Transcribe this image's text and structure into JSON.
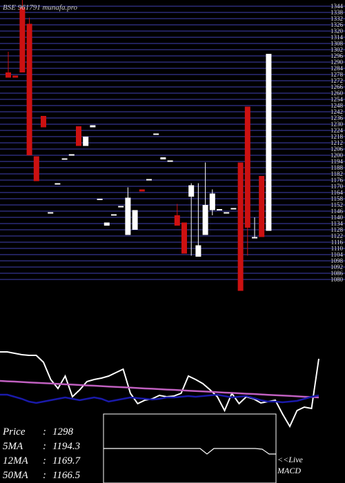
{
  "chart_data": {
    "type": "candlestick",
    "title": "BSE 961791 munafa.pro",
    "ylim": [
      1070,
      1350
    ],
    "yticks": [
      1080,
      1086,
      1092,
      1098,
      1104,
      1110,
      1116,
      1122,
      1128,
      1134,
      1140,
      1146,
      1152,
      1158,
      1164,
      1170,
      1176,
      1182,
      1188,
      1194,
      1200,
      1206,
      1212,
      1218,
      1224,
      1230,
      1236,
      1242,
      1248,
      1254,
      1260,
      1266,
      1272,
      1278,
      1284,
      1290,
      1296,
      1302,
      1308,
      1314,
      1320,
      1326,
      1332,
      1338,
      1344
    ],
    "grid": true,
    "up_color": "#ffffff",
    "down_color": "#cc1111",
    "candles": {
      "open": [
        1280,
        1277,
        1343,
        1327,
        1199,
        1238,
        1145,
        1173,
        1197,
        1201,
        1228,
        1209,
        1227,
        1158,
        1132,
        1143,
        1151,
        1123,
        1128,
        1167,
        1177,
        1221,
        1196,
        1195,
        1142,
        1135,
        1160,
        1102,
        1123,
        1147,
        1148,
        1145,
        1149,
        1193,
        1247,
        1121,
        1180,
        1127
      ],
      "high": [
        1300,
        1277,
        1350,
        1333,
        1199,
        1238,
        1145,
        1173,
        1197,
        1201,
        1228,
        1218,
        1229,
        1158,
        1135,
        1143,
        1151,
        1169,
        1147,
        1167,
        1177,
        1221,
        1198,
        1195,
        1153,
        1135,
        1173,
        1173,
        1193,
        1167,
        1148,
        1145,
        1149,
        1193,
        1247,
        1140,
        1180,
        1298
      ],
      "low": [
        1275,
        1275,
        1280,
        1200,
        1175,
        1227,
        1145,
        1173,
        1197,
        1201,
        1209,
        1209,
        1227,
        1158,
        1132,
        1143,
        1151,
        1123,
        1128,
        1165,
        1177,
        1221,
        1196,
        1195,
        1132,
        1105,
        1103,
        1102,
        1123,
        1142,
        1148,
        1145,
        1149,
        1069,
        1103,
        1121,
        1121,
        1127
      ],
      "close": [
        1275,
        1275,
        1280,
        1200,
        1175,
        1227,
        1145,
        1173,
        1197,
        1201,
        1209,
        1218,
        1229,
        1158,
        1135,
        1143,
        1151,
        1159,
        1147,
        1165,
        1177,
        1221,
        1198,
        1195,
        1132,
        1105,
        1171,
        1113,
        1152,
        1163,
        1148,
        1145,
        1149,
        1069,
        1130,
        1121,
        1121,
        1298
      ]
    },
    "indicator": {
      "ylim": [
        0,
        100
      ],
      "series": [
        {
          "name": "Price",
          "color": "#ffffff",
          "values": [
            60,
            60,
            59,
            58,
            57.5,
            57.5,
            52.5,
            40,
            33.5,
            42.5,
            27.5,
            32.5,
            38.5,
            40,
            41,
            42.5,
            45,
            47.5,
            30,
            22.5,
            25,
            26,
            28.5,
            27.5,
            28,
            30,
            42.5,
            40,
            37,
            32.5,
            27.5,
            17.5,
            30,
            22.5,
            27.5,
            26,
            23,
            24,
            25,
            15,
            6,
            17.5,
            20,
            19,
            55
          ]
        },
        {
          "name": "50MA",
          "color": "#c060c0",
          "values": [
            39,
            38.7,
            38.5,
            38.2,
            37.9,
            37.6,
            37.4,
            37.1,
            36.8,
            36.5,
            36.3,
            36,
            35.7,
            35.5,
            35.2,
            34.9,
            34.6,
            34.4,
            34.1,
            33.8,
            33.5,
            33.3,
            33,
            32.7,
            32.5,
            32.2,
            31.9,
            31.6,
            31.4,
            31.1,
            30.8,
            30.5,
            30.3,
            30,
            29.7,
            29.5,
            29.2,
            28.9,
            28.6,
            28.4,
            28.1,
            27.8,
            27.5,
            27.3,
            27
          ]
        },
        {
          "name": "12MA",
          "color": "#1a1aaa",
          "values": [
            29,
            29,
            27.5,
            26,
            24,
            23,
            24,
            25,
            26,
            27,
            26,
            25,
            26,
            27,
            26,
            24,
            25,
            26,
            27,
            26.5,
            26,
            25.5,
            26,
            27,
            27,
            27.5,
            28,
            27.5,
            28,
            28.5,
            29,
            28,
            27,
            27.5,
            28,
            26.5,
            25,
            24,
            24,
            23.5,
            24,
            24.5,
            26,
            27.5,
            28.5
          ]
        }
      ]
    },
    "macd": {
      "ylim": [
        -50,
        50
      ],
      "values": [
        0,
        0,
        0,
        0,
        0,
        0,
        0,
        0,
        0,
        0,
        0,
        0,
        0,
        0,
        0,
        -8,
        0,
        0,
        0,
        0,
        0,
        0,
        0,
        -1,
        -8,
        -8
      ]
    },
    "separator": ":",
    "stats": [
      {
        "name": "Price",
        "value": 1298
      },
      {
        "name": "5MA",
        "value": 1194.3
      },
      {
        "name": "12MA",
        "value": 1169.7
      },
      {
        "name": "50MA",
        "value": 1166.5
      }
    ],
    "live_label": [
      "<<Live",
      "MACD"
    ]
  }
}
